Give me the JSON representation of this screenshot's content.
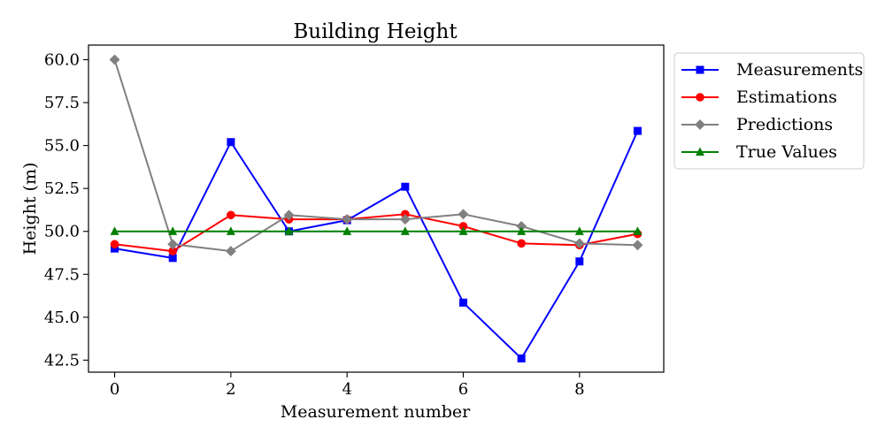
{
  "chart_data": {
    "type": "line",
    "title": "Building Height",
    "xlabel": "Measurement number",
    "ylabel": "Height (m)",
    "x": [
      0,
      1,
      2,
      3,
      4,
      5,
      6,
      7,
      8,
      9
    ],
    "xlim": [
      -0.45,
      9.45
    ],
    "ylim": [
      41.8,
      60.85
    ],
    "xticks": [
      0,
      2,
      4,
      6,
      8
    ],
    "yticks": [
      42.5,
      45.0,
      47.5,
      50.0,
      52.5,
      55.0,
      57.5,
      60.0
    ],
    "xtick_labels": [
      "0",
      "2",
      "4",
      "6",
      "8"
    ],
    "ytick_labels": [
      "42.5",
      "45.0",
      "47.5",
      "50.0",
      "52.5",
      "55.0",
      "57.5",
      "60.0"
    ],
    "grid": false,
    "legend_position": "outside-right-top",
    "series": [
      {
        "name": "Measurements",
        "color": "#0000ff",
        "marker": "square",
        "values": [
          49.0,
          48.45,
          55.2,
          50.0,
          50.65,
          52.6,
          45.85,
          42.6,
          48.25,
          55.85
        ]
      },
      {
        "name": "Estimations",
        "color": "#ff0000",
        "marker": "circle",
        "values": [
          49.25,
          48.85,
          50.95,
          50.7,
          50.7,
          51.0,
          50.3,
          49.3,
          49.2,
          49.85
        ]
      },
      {
        "name": "Predictions",
        "color": "#808080",
        "marker": "diamond",
        "values": [
          60.0,
          49.25,
          48.85,
          50.95,
          50.7,
          50.7,
          51.0,
          50.3,
          49.3,
          49.2
        ]
      },
      {
        "name": "True Values",
        "color": "#008000",
        "marker": "triangle",
        "values": [
          50.0,
          50.0,
          50.0,
          50.0,
          50.0,
          50.0,
          50.0,
          50.0,
          50.0,
          50.0
        ]
      }
    ]
  }
}
